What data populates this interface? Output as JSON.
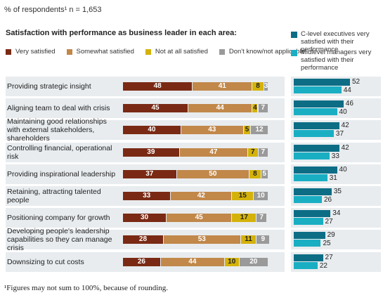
{
  "respondents_line": "% of respondents¹ n = 1,653",
  "section_title": "Satisfaction with performance as business leader in each area:",
  "footnote": "¹Figures may not sum to 100%, because of rounding.",
  "colors": {
    "very_satisfied": "#7a2a14",
    "somewhat_satisfied": "#c1884a",
    "not_at_all": "#d4b20a",
    "dont_know": "#9a9a9a",
    "c_level": "#0d6d85",
    "midlevel": "#1aaec3",
    "band": "#e8ecef"
  },
  "legend": {
    "very_satisfied": "Very satisfied",
    "somewhat_satisfied": "Somewhat satisfied",
    "not_at_all": "Not at all satisfied",
    "dont_know": "Don't know/not applicable"
  },
  "right_legend": {
    "c_level": "C-level executives very satisfied with their performance",
    "midlevel": "Midlevel managers very satisfied with their performance"
  },
  "chart_data": [
    {
      "type": "bar",
      "stacked": true,
      "orientation": "horizontal",
      "categories": [
        "Providing strategic insight",
        "Aligning team to deal with crisis",
        "Maintaining good relationships with external stakeholders, shareholders",
        "Controlling financial, operational risk",
        "Providing inspirational leadership",
        "Retaining, attracting talented people",
        "Positioning company for growth",
        "Developing people's leadership capabilities so they can manage crisis",
        "Downsizing to cut costs"
      ],
      "series": [
        {
          "name": "Very satisfied",
          "values": [
            48,
            45,
            40,
            39,
            37,
            33,
            30,
            28,
            26
          ]
        },
        {
          "name": "Somewhat satisfied",
          "values": [
            41,
            44,
            43,
            47,
            50,
            42,
            45,
            53,
            44
          ]
        },
        {
          "name": "Not at all satisfied",
          "values": [
            8,
            4,
            5,
            7,
            8,
            15,
            17,
            11,
            10
          ]
        },
        {
          "name": "Don't know/not applicable",
          "values": [
            3,
            7,
            12,
            7,
            5,
            10,
            7,
            9,
            20
          ]
        }
      ],
      "title": "Satisfaction with performance as business leader in each area:",
      "legend_position": "top"
    },
    {
      "type": "bar",
      "orientation": "horizontal",
      "categories": [
        "Providing strategic insight",
        "Aligning team to deal with crisis",
        "Maintaining good relationships with external stakeholders, shareholders",
        "Controlling financial, operational risk",
        "Providing inspirational leadership",
        "Retaining, attracting talented people",
        "Positioning company for growth",
        "Developing people's leadership capabilities so they can manage crisis",
        "Downsizing to cut costs"
      ],
      "series": [
        {
          "name": "C-level executives very satisfied with their performance",
          "values": [
            52,
            46,
            42,
            42,
            40,
            35,
            34,
            29,
            27
          ]
        },
        {
          "name": "Midlevel managers very satisfied with their performance",
          "values": [
            44,
            40,
            37,
            33,
            31,
            26,
            27,
            25,
            22
          ]
        }
      ],
      "legend_position": "top-right"
    }
  ]
}
